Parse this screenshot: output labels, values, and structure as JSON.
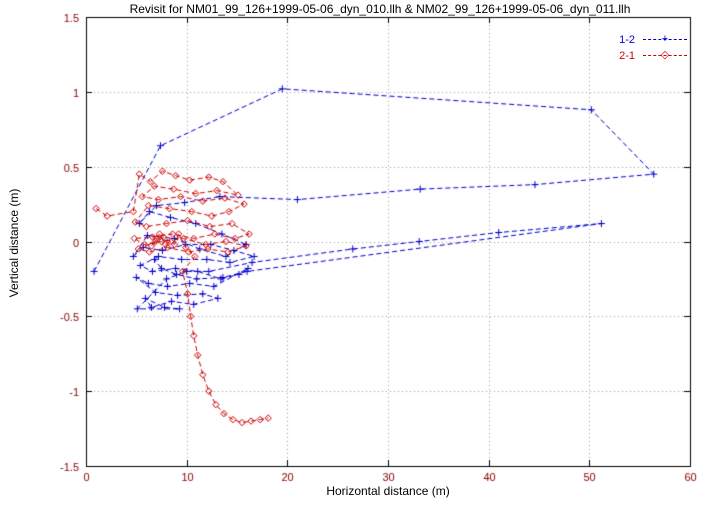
{
  "chart_data": {
    "type": "line",
    "title": "Revisit for NM01_99_126+1999-05-06_dyn_010.llh & NM02_99_126+1999-05-06_dyn_011.llh",
    "xlabel": "Horizontal distance (m)",
    "ylabel": "Vertical distance (m)",
    "xlim": [
      0,
      60
    ],
    "ylim": [
      -1.5,
      1.5
    ],
    "xticks": {
      "values": [
        0,
        10,
        20,
        30,
        40,
        50,
        60
      ],
      "labels": [
        "0",
        "10",
        "20",
        "30",
        "40",
        "50",
        "60"
      ]
    },
    "yticks": {
      "values": [
        -1.5,
        -1,
        -0.5,
        0,
        0.5,
        1,
        1.5
      ],
      "labels": [
        "-1.5",
        "-1",
        "-0.5",
        "0",
        "0.5",
        "1",
        "1.5"
      ]
    },
    "grid": true,
    "legend_position": "top-right",
    "colors": {
      "background": "#ffffff",
      "border": "#000000",
      "grid": "#9a9a9a",
      "title_text": "#000000",
      "axis_label_text": "#000000",
      "tick_text": "#8b0000"
    },
    "series": [
      {
        "name": "1-2",
        "color": "#0000cc",
        "marker": "plus",
        "linestyle": "dashed",
        "points": [
          [
            0.8,
            -0.2
          ],
          [
            7.4,
            0.64
          ],
          [
            19.5,
            1.02
          ],
          [
            50.2,
            0.88
          ],
          [
            56.4,
            0.45
          ],
          [
            44.6,
            0.38
          ],
          [
            33.2,
            0.35
          ],
          [
            21.0,
            0.28
          ],
          [
            13.3,
            0.3
          ],
          [
            9.8,
            0.26
          ],
          [
            7.0,
            0.24
          ],
          [
            5.3,
            0.12
          ],
          [
            6.3,
            0.2
          ],
          [
            8.4,
            0.16
          ],
          [
            10.9,
            0.12
          ],
          [
            13.5,
            0.05
          ],
          [
            15.9,
            -0.02
          ],
          [
            13.9,
            -0.1
          ],
          [
            11.3,
            -0.05
          ],
          [
            8.8,
            0.02
          ],
          [
            6.1,
            0.04
          ],
          [
            4.7,
            -0.1
          ],
          [
            5.7,
            -0.04
          ],
          [
            7.6,
            -0.06
          ],
          [
            9.9,
            -0.02
          ],
          [
            12.4,
            -0.02
          ],
          [
            14.7,
            -0.06
          ],
          [
            16.7,
            -0.1
          ],
          [
            14.3,
            -0.14
          ],
          [
            12.0,
            -0.12
          ],
          [
            9.5,
            -0.12
          ],
          [
            7.2,
            -0.1
          ],
          [
            5.4,
            -0.16
          ],
          [
            6.6,
            -0.2
          ],
          [
            8.9,
            -0.18
          ],
          [
            11.1,
            -0.2
          ],
          [
            13.4,
            -0.25
          ],
          [
            15.2,
            -0.22
          ],
          [
            16.1,
            -0.18
          ],
          [
            12.7,
            -0.3
          ],
          [
            10.3,
            -0.28
          ],
          [
            8.1,
            -0.3
          ],
          [
            6.2,
            -0.28
          ],
          [
            5.0,
            -0.24
          ],
          [
            6.9,
            -0.34
          ],
          [
            9.1,
            -0.36
          ],
          [
            11.6,
            -0.35
          ],
          [
            13.1,
            -0.38
          ],
          [
            10.7,
            -0.42
          ],
          [
            8.5,
            -0.4
          ],
          [
            6.5,
            -0.44
          ],
          [
            5.9,
            -0.38
          ],
          [
            7.8,
            -0.44
          ],
          [
            9.3,
            -0.45
          ],
          [
            5.1,
            -0.45
          ],
          [
            8.0,
            -0.25
          ],
          [
            10.0,
            -0.2
          ],
          [
            12.2,
            -0.2
          ],
          [
            16.5,
            -0.14
          ],
          [
            26.5,
            -0.05
          ],
          [
            33.1,
            0.0
          ],
          [
            41.0,
            0.06
          ],
          [
            51.2,
            0.12
          ],
          [
            16.0,
            -0.2
          ],
          [
            13.6,
            -0.24
          ],
          [
            11.0,
            -0.25
          ],
          [
            9.0,
            -0.22
          ],
          [
            7.5,
            -0.18
          ],
          [
            6.8,
            -0.12
          ]
        ]
      },
      {
        "name": "2-1",
        "color": "#cc0000",
        "marker": "diamond-open",
        "linestyle": "dashed",
        "points": [
          [
            1.0,
            0.22
          ],
          [
            2.1,
            0.17
          ],
          [
            4.7,
            0.2
          ],
          [
            5.3,
            0.45
          ],
          [
            6.4,
            0.4
          ],
          [
            7.6,
            0.47
          ],
          [
            8.9,
            0.44
          ],
          [
            10.3,
            0.41
          ],
          [
            12.2,
            0.43
          ],
          [
            13.6,
            0.4
          ],
          [
            15.1,
            0.31
          ],
          [
            13.0,
            0.34
          ],
          [
            10.9,
            0.32
          ],
          [
            8.7,
            0.35
          ],
          [
            6.8,
            0.37
          ],
          [
            5.6,
            0.3
          ],
          [
            7.2,
            0.28
          ],
          [
            9.4,
            0.3
          ],
          [
            11.6,
            0.27
          ],
          [
            13.8,
            0.29
          ],
          [
            15.7,
            0.25
          ],
          [
            14.2,
            0.2
          ],
          [
            12.5,
            0.17
          ],
          [
            10.5,
            0.2
          ],
          [
            8.3,
            0.22
          ],
          [
            6.2,
            0.24
          ],
          [
            4.9,
            0.13
          ],
          [
            6.0,
            0.1
          ],
          [
            8.0,
            0.12
          ],
          [
            10.1,
            0.14
          ],
          [
            12.3,
            0.1
          ],
          [
            14.5,
            0.12
          ],
          [
            16.2,
            0.05
          ],
          [
            14.8,
            0.02
          ],
          [
            12.8,
            0.05
          ],
          [
            10.7,
            0.02
          ],
          [
            8.6,
            0.05
          ],
          [
            6.6,
            0.03
          ],
          [
            4.8,
            0.02
          ],
          [
            5.8,
            -0.02
          ],
          [
            7.5,
            0.0
          ],
          [
            9.7,
            0.02
          ],
          [
            11.9,
            -0.02
          ],
          [
            13.9,
            0.0
          ],
          [
            15.9,
            -0.03
          ],
          [
            14.1,
            -0.07
          ],
          [
            12.1,
            -0.05
          ],
          [
            10.2,
            -0.07
          ],
          [
            8.1,
            -0.04
          ],
          [
            6.3,
            -0.07
          ],
          [
            5.2,
            -0.05
          ],
          [
            6.9,
            0.0
          ],
          [
            7.3,
            0.05
          ],
          [
            7.9,
            -0.02
          ],
          [
            8.4,
            0.0
          ],
          [
            7.0,
            0.02
          ],
          [
            6.5,
            -0.03
          ],
          [
            7.7,
            0.03
          ],
          [
            8.8,
            -0.02
          ],
          [
            9.2,
            0.05
          ],
          [
            9.9,
            -0.04
          ],
          [
            10.8,
            -0.1
          ],
          [
            9.6,
            -0.2
          ],
          [
            10.1,
            -0.35
          ],
          [
            10.4,
            -0.5
          ],
          [
            10.7,
            -0.63
          ],
          [
            11.1,
            -0.76
          ],
          [
            11.6,
            -0.89
          ],
          [
            12.2,
            -1.0
          ],
          [
            12.9,
            -1.09
          ],
          [
            13.7,
            -1.15
          ],
          [
            14.6,
            -1.19
          ],
          [
            15.5,
            -1.21
          ],
          [
            16.4,
            -1.2
          ],
          [
            17.3,
            -1.19
          ],
          [
            18.1,
            -1.18
          ]
        ]
      }
    ]
  }
}
